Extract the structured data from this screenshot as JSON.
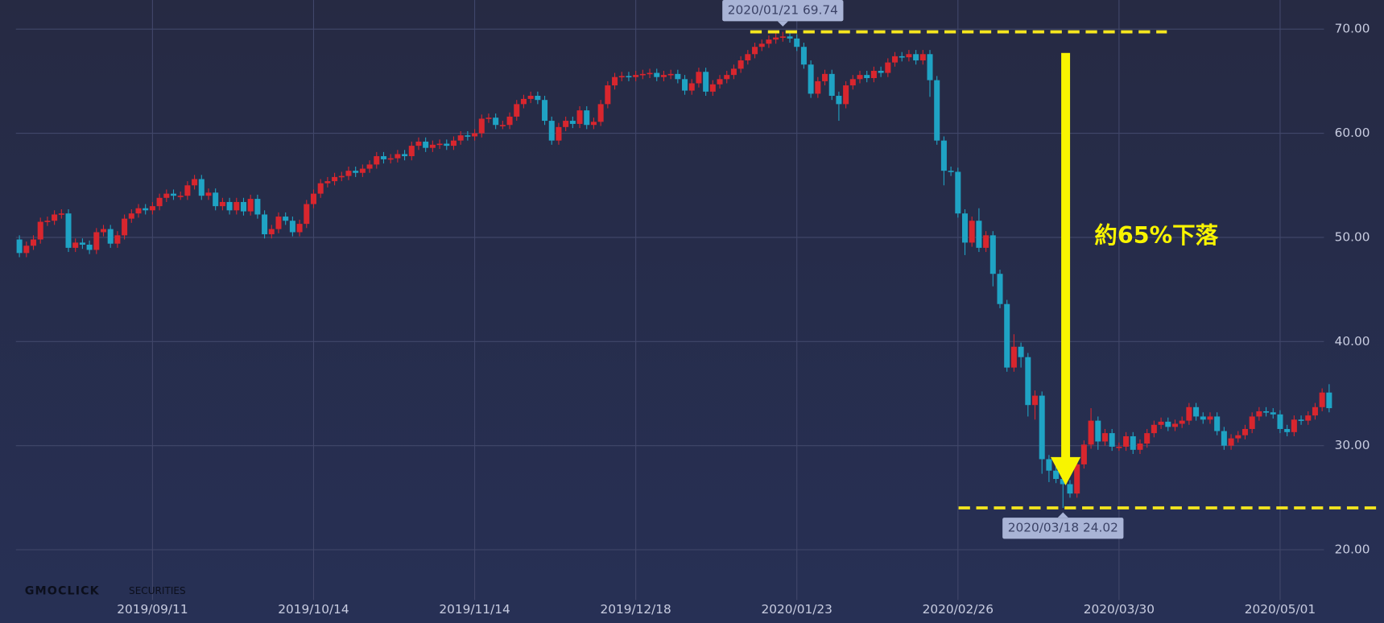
{
  "chart_data": {
    "type": "candlestick",
    "categories": [
      null,
      null,
      null,
      null,
      null,
      null,
      null,
      null,
      null,
      null,
      null,
      null,
      null,
      null,
      null,
      null,
      null,
      null,
      null,
      "2019/09/11",
      null,
      null,
      null,
      null,
      null,
      null,
      null,
      null,
      null,
      null,
      null,
      null,
      null,
      null,
      null,
      null,
      null,
      null,
      null,
      null,
      null,
      null,
      "2019/10/14",
      null,
      null,
      null,
      null,
      null,
      null,
      null,
      null,
      null,
      null,
      null,
      null,
      null,
      null,
      null,
      null,
      null,
      null,
      null,
      null,
      null,
      null,
      "2019/11/14",
      null,
      null,
      null,
      null,
      null,
      null,
      null,
      null,
      null,
      null,
      null,
      null,
      null,
      null,
      null,
      null,
      null,
      null,
      null,
      null,
      null,
      null,
      "2019/12/18",
      null,
      null,
      null,
      null,
      null,
      null,
      null,
      null,
      null,
      null,
      null,
      null,
      null,
      null,
      null,
      null,
      null,
      null,
      null,
      null,
      null,
      null,
      "2020/01/23",
      null,
      null,
      null,
      null,
      null,
      null,
      null,
      null,
      null,
      null,
      null,
      null,
      null,
      null,
      null,
      null,
      null,
      null,
      null,
      null,
      null,
      null,
      "2020/02/26",
      null,
      null,
      null,
      null,
      null,
      null,
      null,
      null,
      null,
      null,
      null,
      null,
      null,
      null,
      null,
      null,
      null,
      null,
      null,
      null,
      null,
      null,
      "2020/03/30",
      null,
      null,
      null,
      null,
      null,
      null,
      null,
      null,
      null,
      null,
      null,
      null,
      null,
      null,
      null,
      null,
      null,
      null,
      null,
      null,
      null,
      null,
      "2020/05/01",
      null,
      null,
      null,
      null,
      null,
      null,
      null
    ],
    "open": [
      49.8,
      48.5,
      49.2,
      49.8,
      51.5,
      51.6,
      52.2,
      52.3,
      49.0,
      49.5,
      49.3,
      48.8,
      50.5,
      50.8,
      49.4,
      50.2,
      51.8,
      52.3,
      52.8,
      52.6,
      53.0,
      53.8,
      54.2,
      54.0,
      54.0,
      55.0,
      55.6,
      54.0,
      54.3,
      53.0,
      53.4,
      52.6,
      53.4,
      52.5,
      53.7,
      52.2,
      50.3,
      50.8,
      52.0,
      51.6,
      50.5,
      51.3,
      53.2,
      54.2,
      55.2,
      55.4,
      55.8,
      55.9,
      56.4,
      56.2,
      56.6,
      57.0,
      57.8,
      57.5,
      57.6,
      58.0,
      57.8,
      58.8,
      59.2,
      58.6,
      58.9,
      59.0,
      58.8,
      59.3,
      59.8,
      59.7,
      60.0,
      61.4,
      61.5,
      60.8,
      60.8,
      61.6,
      62.8,
      63.3,
      63.6,
      63.2,
      61.2,
      59.3,
      60.6,
      61.2,
      60.9,
      62.2,
      60.8,
      61.1,
      62.8,
      64.6,
      65.4,
      65.5,
      65.4,
      65.6,
      65.7,
      65.8,
      65.4,
      65.6,
      65.7,
      65.2,
      64.1,
      64.8,
      65.9,
      64.0,
      64.7,
      65.2,
      65.6,
      66.2,
      67.0,
      67.6,
      68.3,
      68.6,
      69.0,
      69.2,
      69.3,
      69.1,
      68.3,
      66.6,
      63.8,
      65.0,
      65.7,
      63.6,
      62.8,
      64.6,
      65.2,
      65.6,
      65.3,
      66.0,
      65.8,
      66.8,
      67.4,
      67.3,
      67.6,
      67.0,
      67.6,
      65.1,
      59.3,
      56.4,
      56.3,
      52.3,
      49.5,
      51.6,
      49.0,
      50.2,
      46.5,
      43.6,
      37.5,
      39.5,
      38.5,
      33.9,
      34.8,
      28.7,
      27.6,
      26.8,
      26.3,
      25.4,
      28.2,
      30.1,
      32.4,
      30.4,
      31.2,
      29.9,
      29.9,
      30.9,
      29.6,
      30.2,
      31.2,
      32.0,
      32.3,
      31.8,
      32.1,
      32.4,
      33.7,
      32.8,
      32.5,
      32.8,
      31.4,
      30.0,
      30.7,
      31.0,
      31.6,
      32.8,
      33.3,
      33.2,
      33.0,
      31.6,
      31.3,
      32.5,
      32.4,
      32.9,
      33.7,
      35.1
    ],
    "high": [
      50.2,
      49.6,
      50.2,
      51.9,
      52.0,
      52.6,
      52.7,
      52.7,
      49.9,
      49.9,
      49.7,
      50.9,
      51.2,
      51.2,
      50.6,
      52.2,
      52.7,
      53.2,
      53.2,
      53.4,
      54.2,
      54.6,
      54.6,
      54.4,
      55.4,
      56.0,
      56.0,
      54.7,
      54.7,
      53.8,
      53.8,
      53.8,
      53.8,
      54.1,
      54.1,
      52.6,
      51.2,
      52.4,
      52.4,
      52.0,
      51.7,
      53.6,
      54.6,
      55.6,
      55.8,
      56.2,
      56.3,
      56.8,
      56.8,
      57.0,
      57.4,
      58.2,
      58.2,
      58.0,
      58.4,
      58.4,
      59.2,
      59.6,
      59.6,
      59.3,
      59.4,
      59.4,
      59.7,
      60.2,
      60.2,
      60.4,
      61.8,
      61.9,
      61.9,
      61.2,
      62.0,
      63.2,
      63.7,
      64.0,
      64.0,
      63.6,
      61.6,
      61.0,
      61.6,
      61.6,
      62.6,
      62.6,
      61.5,
      63.2,
      65.0,
      65.8,
      65.9,
      65.9,
      66.0,
      66.1,
      66.2,
      66.2,
      66.0,
      66.1,
      66.1,
      65.6,
      65.2,
      66.3,
      66.3,
      65.1,
      65.6,
      66.0,
      66.6,
      67.4,
      68.0,
      68.7,
      69.0,
      69.4,
      69.6,
      69.74,
      69.7,
      69.5,
      68.7,
      67.0,
      65.4,
      66.1,
      66.1,
      64.0,
      65.0,
      65.6,
      66.0,
      66.0,
      66.4,
      66.4,
      67.2,
      67.8,
      67.8,
      68.0,
      68.0,
      68.0,
      68.0,
      65.5,
      59.7,
      56.8,
      56.7,
      52.7,
      52.0,
      52.8,
      50.6,
      50.6,
      46.9,
      44.0,
      40.7,
      39.9,
      38.9,
      35.3,
      35.2,
      29.1,
      28.0,
      27.2,
      26.7,
      28.6,
      30.5,
      33.6,
      32.8,
      31.6,
      31.6,
      30.3,
      31.3,
      31.3,
      30.6,
      31.6,
      32.4,
      32.7,
      32.7,
      32.5,
      32.8,
      34.1,
      34.1,
      33.2,
      33.2,
      33.2,
      31.8,
      31.1,
      31.4,
      32.0,
      33.2,
      33.7,
      33.7,
      33.6,
      33.4,
      32.0,
      32.9,
      32.9,
      33.3,
      34.1,
      35.5,
      35.9
    ],
    "low": [
      48.1,
      48.1,
      48.8,
      49.4,
      51.1,
      51.2,
      51.8,
      48.6,
      48.6,
      48.9,
      48.4,
      48.4,
      50.1,
      49.0,
      49.0,
      49.8,
      51.4,
      51.9,
      52.2,
      52.2,
      52.6,
      53.4,
      53.6,
      53.6,
      53.6,
      54.6,
      53.6,
      53.6,
      52.6,
      52.6,
      52.2,
      52.2,
      52.1,
      52.1,
      51.8,
      49.9,
      49.9,
      50.4,
      51.2,
      50.1,
      50.1,
      50.9,
      52.8,
      53.8,
      54.8,
      55.0,
      55.4,
      55.5,
      55.8,
      55.8,
      56.2,
      56.6,
      57.1,
      57.1,
      57.2,
      57.4,
      57.4,
      58.4,
      58.2,
      58.2,
      58.5,
      58.4,
      58.4,
      58.9,
      59.3,
      59.3,
      59.6,
      61.0,
      60.4,
      60.4,
      60.4,
      61.2,
      62.4,
      62.9,
      62.8,
      60.8,
      58.9,
      58.9,
      60.2,
      60.5,
      60.5,
      60.4,
      60.4,
      60.7,
      62.4,
      64.2,
      65.0,
      65.0,
      65.0,
      65.2,
      65.3,
      65.0,
      65.0,
      65.2,
      64.8,
      63.7,
      63.7,
      64.4,
      63.6,
      63.6,
      64.3,
      64.8,
      65.2,
      65.8,
      66.6,
      67.2,
      67.9,
      68.2,
      68.6,
      68.8,
      68.7,
      67.9,
      66.2,
      63.4,
      63.4,
      64.6,
      63.2,
      61.2,
      62.4,
      64.2,
      64.8,
      64.9,
      64.9,
      65.4,
      65.4,
      66.4,
      66.9,
      66.9,
      66.6,
      66.6,
      63.5,
      58.9,
      55.0,
      55.9,
      51.9,
      48.3,
      49.1,
      48.6,
      48.6,
      45.3,
      43.2,
      37.1,
      37.1,
      37.5,
      32.8,
      32.5,
      27.3,
      26.5,
      26.4,
      24.02,
      25.0,
      25.0,
      27.8,
      29.7,
      29.6,
      30.0,
      29.5,
      29.5,
      29.5,
      29.2,
      29.2,
      29.8,
      30.8,
      31.6,
      31.4,
      31.4,
      31.7,
      32.0,
      32.4,
      32.1,
      32.1,
      31.0,
      29.6,
      29.6,
      30.3,
      30.6,
      31.2,
      32.4,
      32.8,
      32.6,
      31.2,
      30.9,
      30.9,
      32.0,
      32.0,
      32.5,
      33.3,
      33.2
    ],
    "close": [
      48.5,
      49.2,
      49.8,
      51.5,
      51.6,
      52.2,
      52.3,
      49.0,
      49.5,
      49.3,
      48.8,
      50.5,
      50.8,
      49.4,
      50.2,
      51.8,
      52.3,
      52.8,
      52.6,
      53.0,
      53.8,
      54.2,
      54.0,
      54.0,
      55.0,
      55.6,
      54.0,
      54.3,
      53.0,
      53.4,
      52.6,
      53.4,
      52.5,
      53.7,
      52.2,
      50.3,
      50.8,
      52.0,
      51.6,
      50.5,
      51.3,
      53.2,
      54.2,
      55.2,
      55.4,
      55.8,
      55.9,
      56.4,
      56.2,
      56.6,
      57.0,
      57.8,
      57.5,
      57.6,
      58.0,
      57.8,
      58.8,
      59.2,
      58.6,
      58.9,
      59.0,
      58.8,
      59.3,
      59.8,
      59.7,
      60.0,
      61.4,
      61.5,
      60.8,
      60.8,
      61.6,
      62.8,
      63.3,
      63.6,
      63.2,
      61.2,
      59.3,
      60.6,
      61.2,
      60.9,
      62.2,
      60.8,
      61.1,
      62.8,
      64.6,
      65.4,
      65.5,
      65.4,
      65.6,
      65.7,
      65.8,
      65.4,
      65.6,
      65.7,
      65.2,
      64.1,
      64.8,
      65.9,
      64.0,
      64.7,
      65.2,
      65.6,
      66.2,
      67.0,
      67.6,
      68.3,
      68.6,
      69.0,
      69.2,
      69.3,
      69.1,
      68.3,
      66.6,
      63.8,
      65.0,
      65.7,
      63.6,
      62.8,
      64.6,
      65.2,
      65.6,
      65.3,
      66.0,
      65.8,
      66.8,
      67.4,
      67.3,
      67.6,
      67.0,
      67.6,
      65.1,
      59.3,
      56.4,
      56.3,
      52.3,
      49.5,
      51.6,
      49.0,
      50.2,
      46.5,
      43.6,
      37.5,
      39.5,
      38.5,
      33.9,
      34.8,
      28.7,
      27.6,
      26.8,
      26.3,
      25.4,
      28.2,
      30.1,
      32.4,
      30.4,
      31.2,
      29.9,
      29.9,
      30.9,
      29.6,
      30.2,
      31.2,
      32.0,
      32.3,
      31.8,
      32.1,
      32.4,
      33.7,
      32.8,
      32.5,
      32.8,
      31.4,
      30.0,
      30.7,
      31.0,
      31.6,
      32.8,
      33.3,
      33.2,
      33.0,
      31.6,
      31.3,
      32.5,
      32.4,
      32.9,
      33.7,
      35.1,
      33.6
    ],
    "up_color": "#d8262e",
    "down_color": "#1fa3c4",
    "ylim": [
      15.17,
      72.8
    ],
    "yticks": [
      {
        "value": 20,
        "label": "20.00"
      },
      {
        "value": 30,
        "label": "30.00"
      },
      {
        "value": 40,
        "label": "40.00"
      },
      {
        "value": 50,
        "label": "50.00"
      },
      {
        "value": 60,
        "label": "60.00"
      },
      {
        "value": 70,
        "label": "70.00"
      }
    ],
    "grid": true,
    "annotations": [
      {
        "text": "2020/01/21 69.74"
      },
      {
        "text": "2020/03/18 24.02"
      },
      {
        "text": "約65%下落"
      }
    ],
    "watermark": [
      "GMOCLICK",
      "SECURITIES"
    ]
  }
}
